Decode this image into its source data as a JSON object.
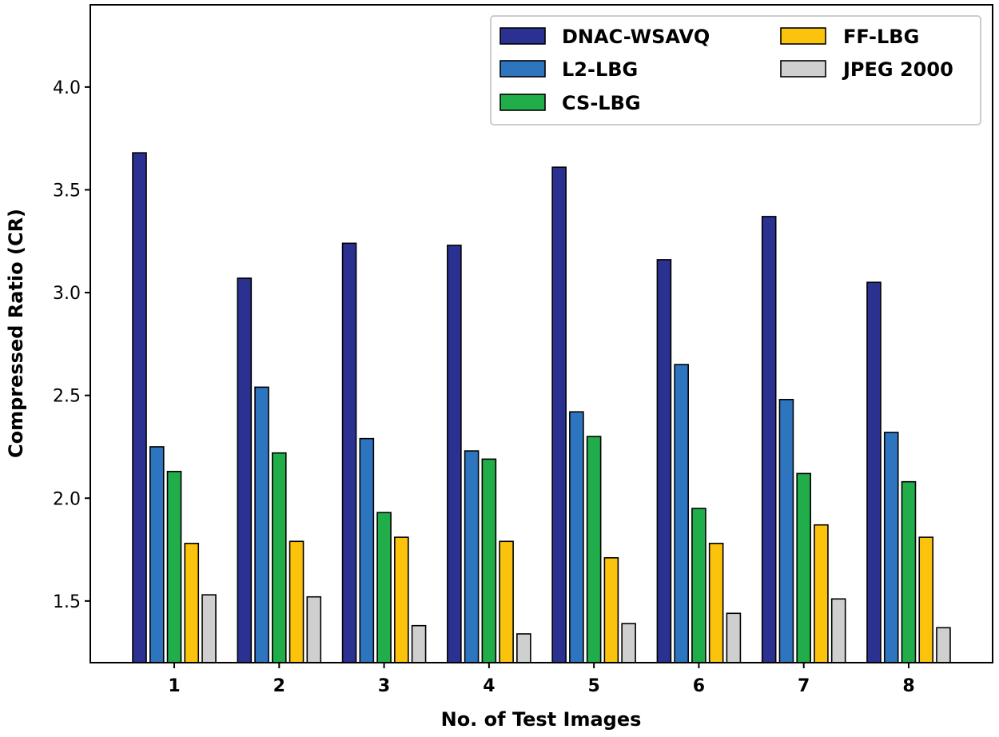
{
  "chart_data": {
    "type": "bar",
    "title": "",
    "xlabel": "No. of Test Images",
    "ylabel": "Compressed Ratio (CR)",
    "categories": [
      "1",
      "2",
      "3",
      "4",
      "5",
      "6",
      "7",
      "8"
    ],
    "ylim": [
      1.2,
      4.4
    ],
    "yticks": [
      "1.5",
      "2.0",
      "2.5",
      "3.0",
      "3.5",
      "4.0"
    ],
    "grid": false,
    "legend_position": "top-right",
    "series": [
      {
        "name": "DNAC-WSAVQ",
        "color": "#2b3190",
        "values": [
          3.68,
          3.07,
          3.24,
          3.23,
          3.61,
          3.16,
          3.37,
          3.05
        ]
      },
      {
        "name": "L2-LBG",
        "color": "#2e75c0",
        "values": [
          2.25,
          2.54,
          2.29,
          2.23,
          2.42,
          2.65,
          2.48,
          2.32
        ]
      },
      {
        "name": "CS-LBG",
        "color": "#20ad4a",
        "values": [
          2.13,
          2.22,
          1.93,
          2.19,
          2.3,
          1.95,
          2.12,
          2.08
        ]
      },
      {
        "name": "FF-LBG",
        "color": "#fcc30c",
        "values": [
          1.78,
          1.79,
          1.81,
          1.79,
          1.71,
          1.78,
          1.87,
          1.81
        ]
      },
      {
        "name": "JPEG 2000",
        "color": "#cfcfcf",
        "values": [
          1.53,
          1.52,
          1.38,
          1.34,
          1.39,
          1.44,
          1.51,
          1.37
        ]
      }
    ]
  }
}
